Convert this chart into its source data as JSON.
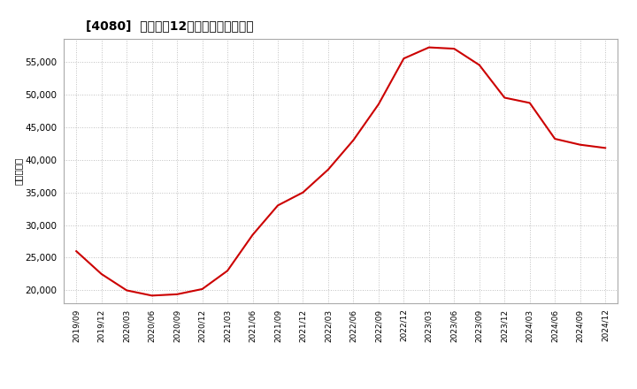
{
  "title": "[4080]  売上高の12か月移動合計の推移",
  "ylabel": "（百万円）",
  "line_color": "#cc0000",
  "background_color": "#ffffff",
  "plot_bg_color": "#ffffff",
  "grid_color": "#c0c0c0",
  "ylim": [
    18000,
    58500
  ],
  "yticks": [
    20000,
    25000,
    30000,
    35000,
    40000,
    45000,
    50000,
    55000
  ],
  "dates": [
    "2019/09",
    "2019/12",
    "2020/03",
    "2020/06",
    "2020/09",
    "2020/12",
    "2021/03",
    "2021/06",
    "2021/09",
    "2021/12",
    "2022/03",
    "2022/06",
    "2022/09",
    "2022/12",
    "2023/03",
    "2023/06",
    "2023/09",
    "2023/12",
    "2024/03",
    "2024/06",
    "2024/09",
    "2024/12"
  ],
  "values": [
    26000,
    22500,
    20000,
    19200,
    19400,
    20200,
    23000,
    28500,
    33000,
    35000,
    38500,
    43000,
    48500,
    55500,
    57200,
    57000,
    54500,
    49500,
    48700,
    43200,
    42300,
    41800
  ],
  "xtick_labels": [
    "2019/09",
    "2019/12",
    "2020/03",
    "2020/06",
    "2020/09",
    "2020/12",
    "2021/03",
    "2021/06",
    "2021/09",
    "2021/12",
    "2022/03",
    "2022/06",
    "2022/09",
    "2022/12",
    "2023/03",
    "2023/06",
    "2023/09",
    "2023/12",
    "2024/03",
    "2024/06",
    "2024/09",
    "2024/12"
  ]
}
